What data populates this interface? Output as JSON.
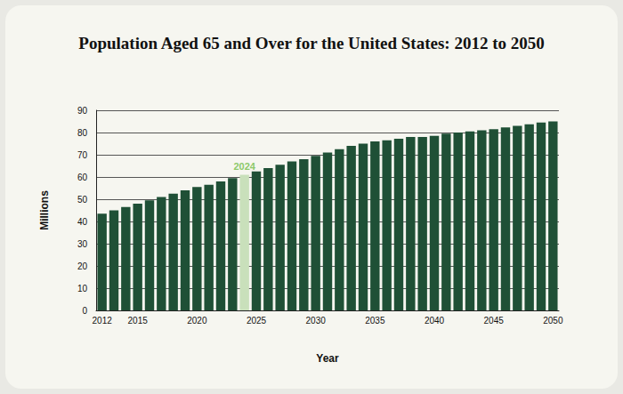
{
  "chart_data": {
    "type": "bar",
    "title": "Population Aged 65 and Over for the United States: 2012 to 2050",
    "x_label": "Year",
    "y_label": "Millions",
    "categories": [
      "2012",
      null,
      null,
      "2015",
      null,
      null,
      null,
      null,
      "2020",
      null,
      null,
      null,
      null,
      "2025",
      null,
      null,
      null,
      null,
      "2030",
      null,
      null,
      null,
      null,
      "2035",
      null,
      null,
      null,
      null,
      "2040",
      null,
      null,
      null,
      null,
      "2045",
      null,
      null,
      null,
      null,
      "2050"
    ],
    "values": [
      43.5,
      45,
      46.5,
      48,
      49.5,
      51,
      52.5,
      54,
      55.5,
      56.5,
      58,
      59.5,
      61,
      62.5,
      64,
      65.5,
      67,
      68,
      69.5,
      71,
      72.5,
      74,
      75,
      76,
      76.5,
      77.2,
      78,
      78,
      78.5,
      79.5,
      80,
      80.5,
      81,
      81.5,
      82.3,
      83,
      83.7,
      84.5,
      85
    ],
    "colors": [
      "#1f5036",
      "#1f5036",
      "#1f5036",
      "#1f5036",
      "#1f5036",
      "#1f5036",
      "#1f5036",
      "#1f5036",
      "#1f5036",
      "#1f5036",
      "#1f5036",
      "#1f5036",
      "#c9e0bb",
      "#1f5036",
      "#1f5036",
      "#1f5036",
      "#1f5036",
      "#1f5036",
      "#1f5036",
      "#1f5036",
      "#1f5036",
      "#1f5036",
      "#1f5036",
      "#1f5036",
      "#1f5036",
      "#1f5036",
      "#1f5036",
      "#1f5036",
      "#1f5036",
      "#1f5036",
      "#1f5036",
      "#1f5036",
      "#1f5036",
      "#1f5036",
      "#1f5036",
      "#1f5036",
      "#1f5036",
      "#1f5036",
      "#1f5036"
    ],
    "annotations": [
      {
        "text": "2024",
        "index": 12
      }
    ],
    "ylim": [
      0,
      90
    ],
    "yticks": [
      0,
      10,
      20,
      30,
      40,
      50,
      60,
      70,
      80,
      90
    ],
    "grid": true
  }
}
